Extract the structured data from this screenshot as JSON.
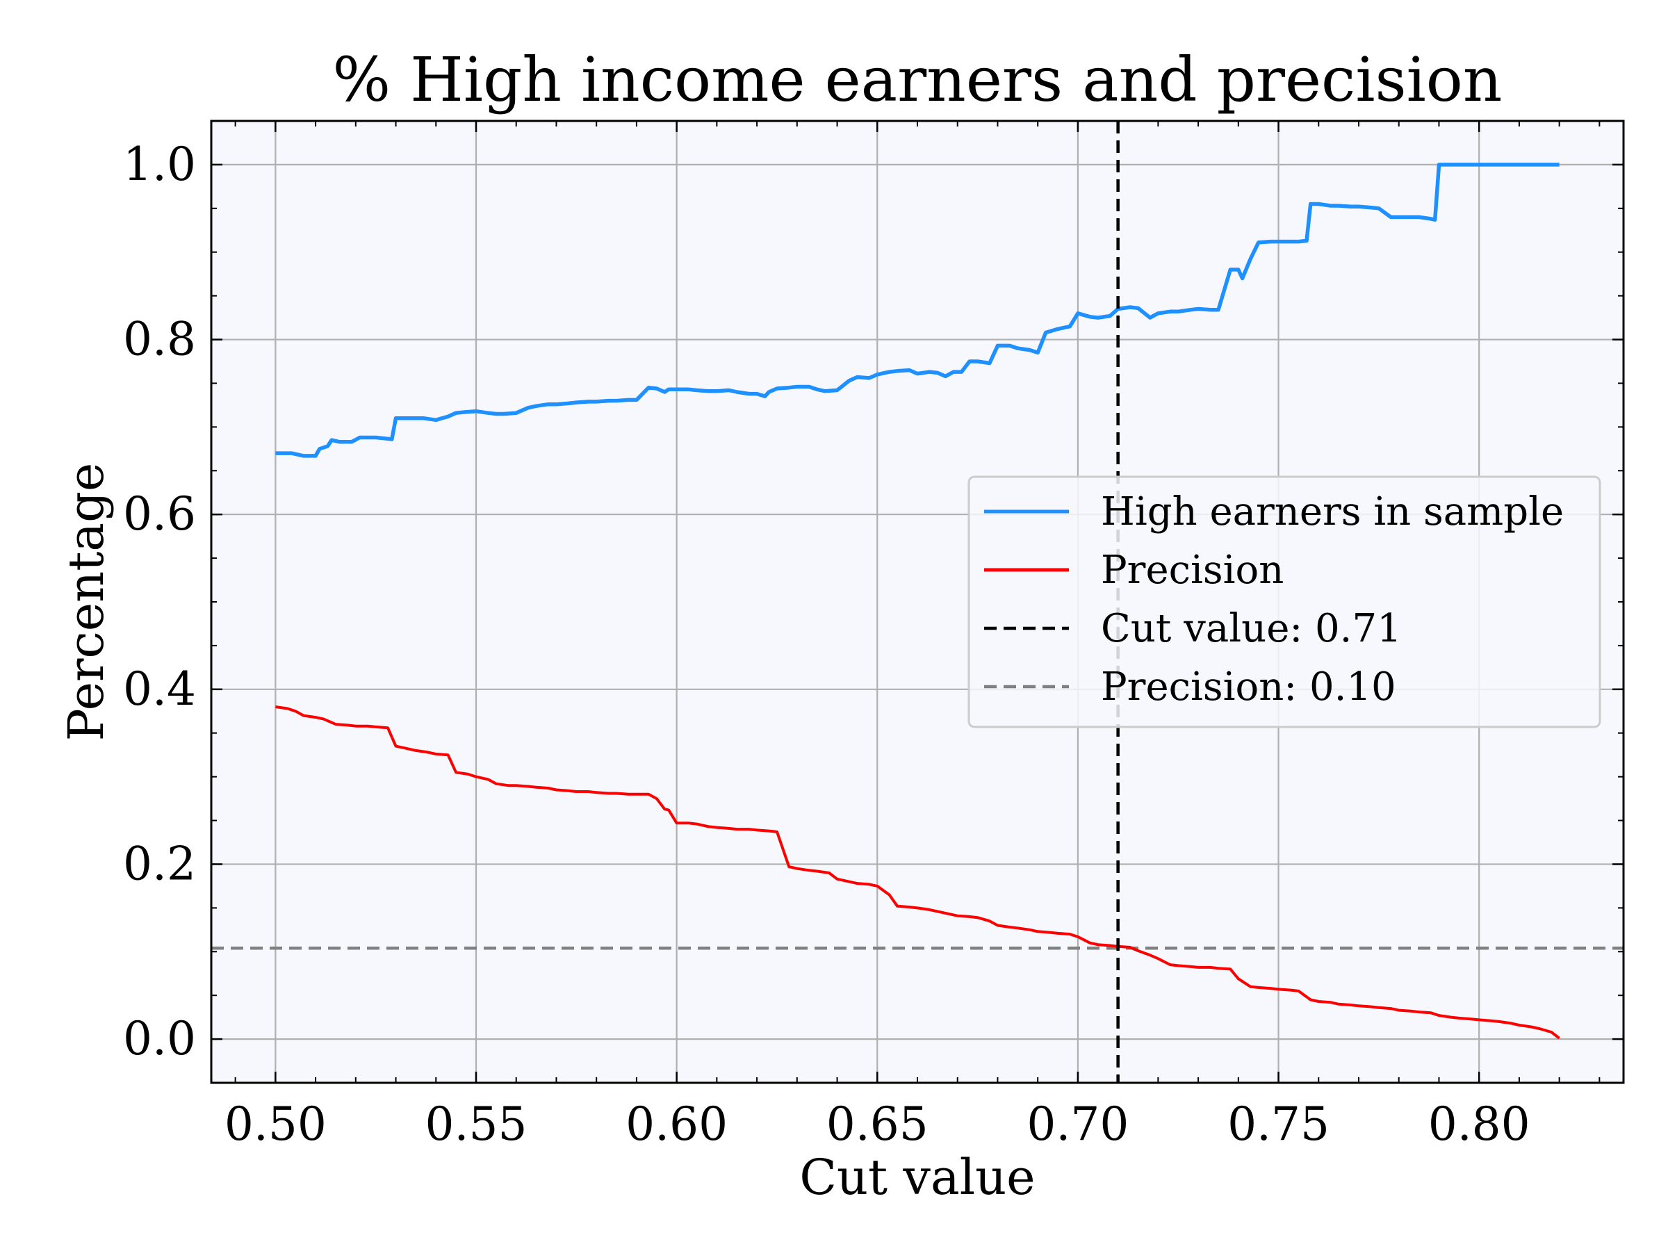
{
  "chart_data": {
    "type": "line",
    "title": "% High income earners and precision",
    "xlabel": "Cut value",
    "ylabel": "Percentage",
    "xlim": [
      0.484,
      0.836
    ],
    "ylim": [
      -0.05,
      1.05
    ],
    "x_ticks": [
      0.5,
      0.55,
      0.6,
      0.65,
      0.7,
      0.75,
      0.8
    ],
    "x_tick_labels": [
      "0.50",
      "0.55",
      "0.60",
      "0.65",
      "0.70",
      "0.75",
      "0.80"
    ],
    "y_ticks": [
      0.0,
      0.2,
      0.4,
      0.6,
      0.8,
      1.0
    ],
    "y_tick_labels": [
      "0.0",
      "0.2",
      "0.4",
      "0.6",
      "0.8",
      "1.0"
    ],
    "grid": true,
    "legend_position": "center-right",
    "series": [
      {
        "name": "High earners in sample",
        "color": "#1e90ff",
        "style": "solid",
        "x": [
          0.5,
          0.504,
          0.507,
          0.51,
          0.511,
          0.513,
          0.514,
          0.516,
          0.519,
          0.521,
          0.525,
          0.527,
          0.529,
          0.53,
          0.531,
          0.533,
          0.535,
          0.537,
          0.54,
          0.543,
          0.545,
          0.547,
          0.55,
          0.553,
          0.555,
          0.557,
          0.56,
          0.563,
          0.565,
          0.568,
          0.57,
          0.573,
          0.575,
          0.578,
          0.58,
          0.583,
          0.585,
          0.588,
          0.59,
          0.593,
          0.595,
          0.597,
          0.598,
          0.6,
          0.603,
          0.605,
          0.608,
          0.61,
          0.613,
          0.615,
          0.618,
          0.62,
          0.622,
          0.623,
          0.625,
          0.628,
          0.63,
          0.633,
          0.635,
          0.637,
          0.64,
          0.643,
          0.645,
          0.648,
          0.65,
          0.653,
          0.655,
          0.658,
          0.66,
          0.663,
          0.665,
          0.667,
          0.669,
          0.671,
          0.673,
          0.675,
          0.678,
          0.68,
          0.683,
          0.685,
          0.688,
          0.69,
          0.692,
          0.695,
          0.698,
          0.7,
          0.703,
          0.705,
          0.708,
          0.71,
          0.713,
          0.715,
          0.718,
          0.72,
          0.723,
          0.725,
          0.728,
          0.73,
          0.733,
          0.735,
          0.738,
          0.74,
          0.741,
          0.743,
          0.745,
          0.748,
          0.75,
          0.753,
          0.755,
          0.757,
          0.758,
          0.76,
          0.763,
          0.765,
          0.768,
          0.77,
          0.773,
          0.775,
          0.778,
          0.78,
          0.783,
          0.785,
          0.788,
          0.789,
          0.79,
          0.793,
          0.795,
          0.798,
          0.8,
          0.805,
          0.81,
          0.815,
          0.82
        ],
        "y": [
          0.67,
          0.67,
          0.667,
          0.667,
          0.675,
          0.678,
          0.685,
          0.683,
          0.683,
          0.688,
          0.688,
          0.687,
          0.686,
          0.71,
          0.71,
          0.71,
          0.71,
          0.71,
          0.708,
          0.712,
          0.716,
          0.717,
          0.718,
          0.716,
          0.715,
          0.715,
          0.716,
          0.722,
          0.724,
          0.726,
          0.726,
          0.727,
          0.728,
          0.729,
          0.729,
          0.73,
          0.73,
          0.731,
          0.731,
          0.745,
          0.744,
          0.74,
          0.743,
          0.743,
          0.743,
          0.742,
          0.741,
          0.741,
          0.742,
          0.74,
          0.738,
          0.738,
          0.735,
          0.74,
          0.744,
          0.745,
          0.746,
          0.746,
          0.743,
          0.741,
          0.742,
          0.753,
          0.757,
          0.756,
          0.76,
          0.763,
          0.764,
          0.765,
          0.761,
          0.763,
          0.762,
          0.758,
          0.763,
          0.763,
          0.775,
          0.775,
          0.773,
          0.793,
          0.793,
          0.79,
          0.788,
          0.785,
          0.808,
          0.812,
          0.815,
          0.83,
          0.826,
          0.825,
          0.827,
          0.835,
          0.837,
          0.836,
          0.825,
          0.83,
          0.832,
          0.832,
          0.834,
          0.835,
          0.834,
          0.834,
          0.88,
          0.88,
          0.87,
          0.892,
          0.911,
          0.912,
          0.912,
          0.912,
          0.912,
          0.913,
          0.955,
          0.955,
          0.953,
          0.953,
          0.952,
          0.952,
          0.951,
          0.95,
          0.94,
          0.94,
          0.94,
          0.94,
          0.938,
          0.937,
          1.0,
          1.0,
          1.0,
          1.0,
          1.0,
          1.0,
          1.0,
          1.0,
          1.0
        ]
      },
      {
        "name": "Precision",
        "color": "#ff0000",
        "style": "solid",
        "x": [
          0.5,
          0.503,
          0.505,
          0.507,
          0.51,
          0.512,
          0.515,
          0.518,
          0.52,
          0.523,
          0.525,
          0.528,
          0.53,
          0.532,
          0.535,
          0.538,
          0.54,
          0.543,
          0.545,
          0.548,
          0.55,
          0.553,
          0.555,
          0.558,
          0.56,
          0.563,
          0.565,
          0.568,
          0.57,
          0.573,
          0.575,
          0.578,
          0.58,
          0.583,
          0.585,
          0.588,
          0.59,
          0.593,
          0.595,
          0.597,
          0.598,
          0.6,
          0.603,
          0.605,
          0.608,
          0.61,
          0.613,
          0.615,
          0.618,
          0.62,
          0.623,
          0.625,
          0.628,
          0.63,
          0.633,
          0.635,
          0.638,
          0.64,
          0.643,
          0.645,
          0.648,
          0.65,
          0.653,
          0.655,
          0.658,
          0.66,
          0.663,
          0.665,
          0.668,
          0.67,
          0.673,
          0.675,
          0.678,
          0.68,
          0.683,
          0.685,
          0.688,
          0.69,
          0.693,
          0.695,
          0.698,
          0.7,
          0.703,
          0.705,
          0.708,
          0.71,
          0.713,
          0.715,
          0.718,
          0.72,
          0.723,
          0.725,
          0.728,
          0.73,
          0.733,
          0.735,
          0.738,
          0.74,
          0.743,
          0.745,
          0.748,
          0.75,
          0.753,
          0.755,
          0.758,
          0.76,
          0.763,
          0.765,
          0.768,
          0.77,
          0.773,
          0.775,
          0.778,
          0.78,
          0.783,
          0.785,
          0.788,
          0.79,
          0.793,
          0.795,
          0.798,
          0.8,
          0.803,
          0.805,
          0.808,
          0.81,
          0.813,
          0.815,
          0.818,
          0.82
        ],
        "y": [
          0.38,
          0.378,
          0.375,
          0.37,
          0.368,
          0.366,
          0.36,
          0.359,
          0.358,
          0.358,
          0.357,
          0.356,
          0.335,
          0.333,
          0.33,
          0.328,
          0.326,
          0.325,
          0.305,
          0.303,
          0.3,
          0.297,
          0.292,
          0.29,
          0.29,
          0.289,
          0.288,
          0.287,
          0.285,
          0.284,
          0.283,
          0.283,
          0.282,
          0.281,
          0.281,
          0.28,
          0.28,
          0.28,
          0.275,
          0.263,
          0.262,
          0.247,
          0.247,
          0.246,
          0.243,
          0.242,
          0.241,
          0.24,
          0.24,
          0.239,
          0.238,
          0.237,
          0.197,
          0.195,
          0.193,
          0.192,
          0.19,
          0.183,
          0.18,
          0.178,
          0.177,
          0.175,
          0.165,
          0.152,
          0.151,
          0.15,
          0.148,
          0.146,
          0.143,
          0.141,
          0.14,
          0.139,
          0.135,
          0.13,
          0.128,
          0.127,
          0.125,
          0.123,
          0.122,
          0.121,
          0.12,
          0.117,
          0.11,
          0.108,
          0.107,
          0.106,
          0.105,
          0.101,
          0.096,
          0.092,
          0.085,
          0.084,
          0.083,
          0.082,
          0.082,
          0.081,
          0.08,
          0.069,
          0.06,
          0.059,
          0.058,
          0.057,
          0.056,
          0.055,
          0.045,
          0.043,
          0.042,
          0.04,
          0.039,
          0.038,
          0.037,
          0.036,
          0.035,
          0.033,
          0.032,
          0.031,
          0.03,
          0.027,
          0.025,
          0.024,
          0.023,
          0.022,
          0.021,
          0.02,
          0.018,
          0.016,
          0.014,
          0.012,
          0.008,
          0.001
        ]
      },
      {
        "name": "Cut value: 0.71",
        "color": "#000000",
        "style": "dashed",
        "orientation": "vertical",
        "value": 0.71
      },
      {
        "name": "Precision: 0.10",
        "color": "#808080",
        "style": "dashed",
        "orientation": "horizontal",
        "value": 0.104
      }
    ]
  }
}
